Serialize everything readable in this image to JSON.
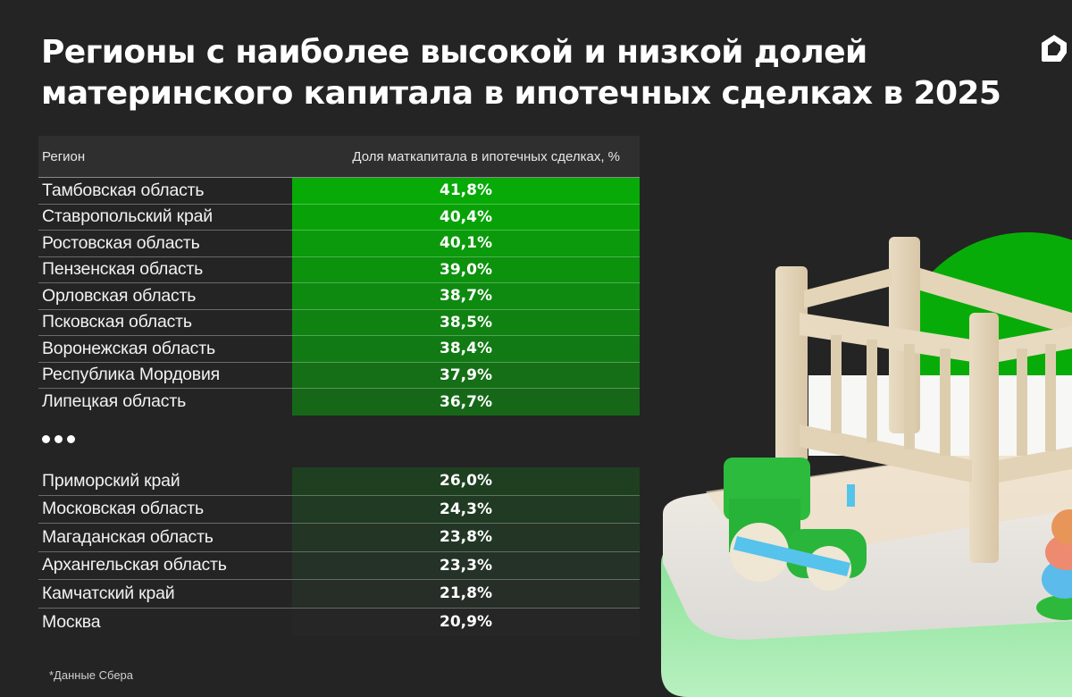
{
  "title": {
    "line1": "Регионы с наиболее высокой и низкой долей",
    "line2": "материнского капитала в ипотечных сделках в 2025"
  },
  "logo": {
    "icon": "house-logo-icon"
  },
  "table": {
    "headers": {
      "region": "Регион",
      "share": "Доля маткапитала в ипотечных сделках, %"
    },
    "top_rows": [
      {
        "region": "Тамбовская область",
        "value": "41,8%",
        "color": "#07aa07"
      },
      {
        "region": "Ставропольский край",
        "value": "40,4%",
        "color": "#08a208"
      },
      {
        "region": "Ростовская область",
        "value": "40,1%",
        "color": "#0a9a0b"
      },
      {
        "region": "Пензенская область",
        "value": "39,0%",
        "color": "#0c920d"
      },
      {
        "region": "Орловская область",
        "value": "38,7%",
        "color": "#0e8a10"
      },
      {
        "region": "Псковская область",
        "value": "38,5%",
        "color": "#108212"
      },
      {
        "region": "Воронежская область",
        "value": "38,4%",
        "color": "#127a14"
      },
      {
        "region": "Республика Мордовия",
        "value": "37,9%",
        "color": "#146f16"
      },
      {
        "region": "Липецкая область",
        "value": "36,7%",
        "color": "#166818"
      }
    ],
    "ellipsis": "•••",
    "bottom_rows": [
      {
        "region": "Приморский край",
        "value": "26,0%",
        "color": "#1f3f21"
      },
      {
        "region": "Московская область",
        "value": "24,3%",
        "color": "#213a23"
      },
      {
        "region": "Магаданская область",
        "value": "23,8%",
        "color": "#233625"
      },
      {
        "region": "Архангельская область",
        "value": "23,3%",
        "color": "#253227"
      },
      {
        "region": "Камчатский край",
        "value": "21,8%",
        "color": "#272e28"
      },
      {
        "region": "Москва",
        "value": "20,9%",
        "color": "#262626"
      }
    ]
  },
  "footnote": "*Данные Сбера",
  "chart_data": {
    "type": "table",
    "title": "Регионы с наиболее высокой и низкой долей материнского капитала в ипотечных сделках в 2025",
    "columns": [
      "Регион",
      "Доля маткапитала в ипотечных сделках, %"
    ],
    "categories": [
      "Тамбовская область",
      "Ставропольский край",
      "Ростовская область",
      "Пензенская область",
      "Орловская область",
      "Псковская область",
      "Воронежская область",
      "Республика Мордовия",
      "Липецкая область",
      "Приморский край",
      "Московская область",
      "Магаданская область",
      "Архангельская область",
      "Камчатский край",
      "Москва"
    ],
    "values": [
      41.8,
      40.4,
      40.1,
      39.0,
      38.7,
      38.5,
      38.4,
      37.9,
      36.7,
      26.0,
      24.3,
      23.8,
      23.3,
      21.8,
      20.9
    ],
    "groups": {
      "highest": 9,
      "lowest": 6
    },
    "unit": "%",
    "source": "*Данные Сбера"
  }
}
